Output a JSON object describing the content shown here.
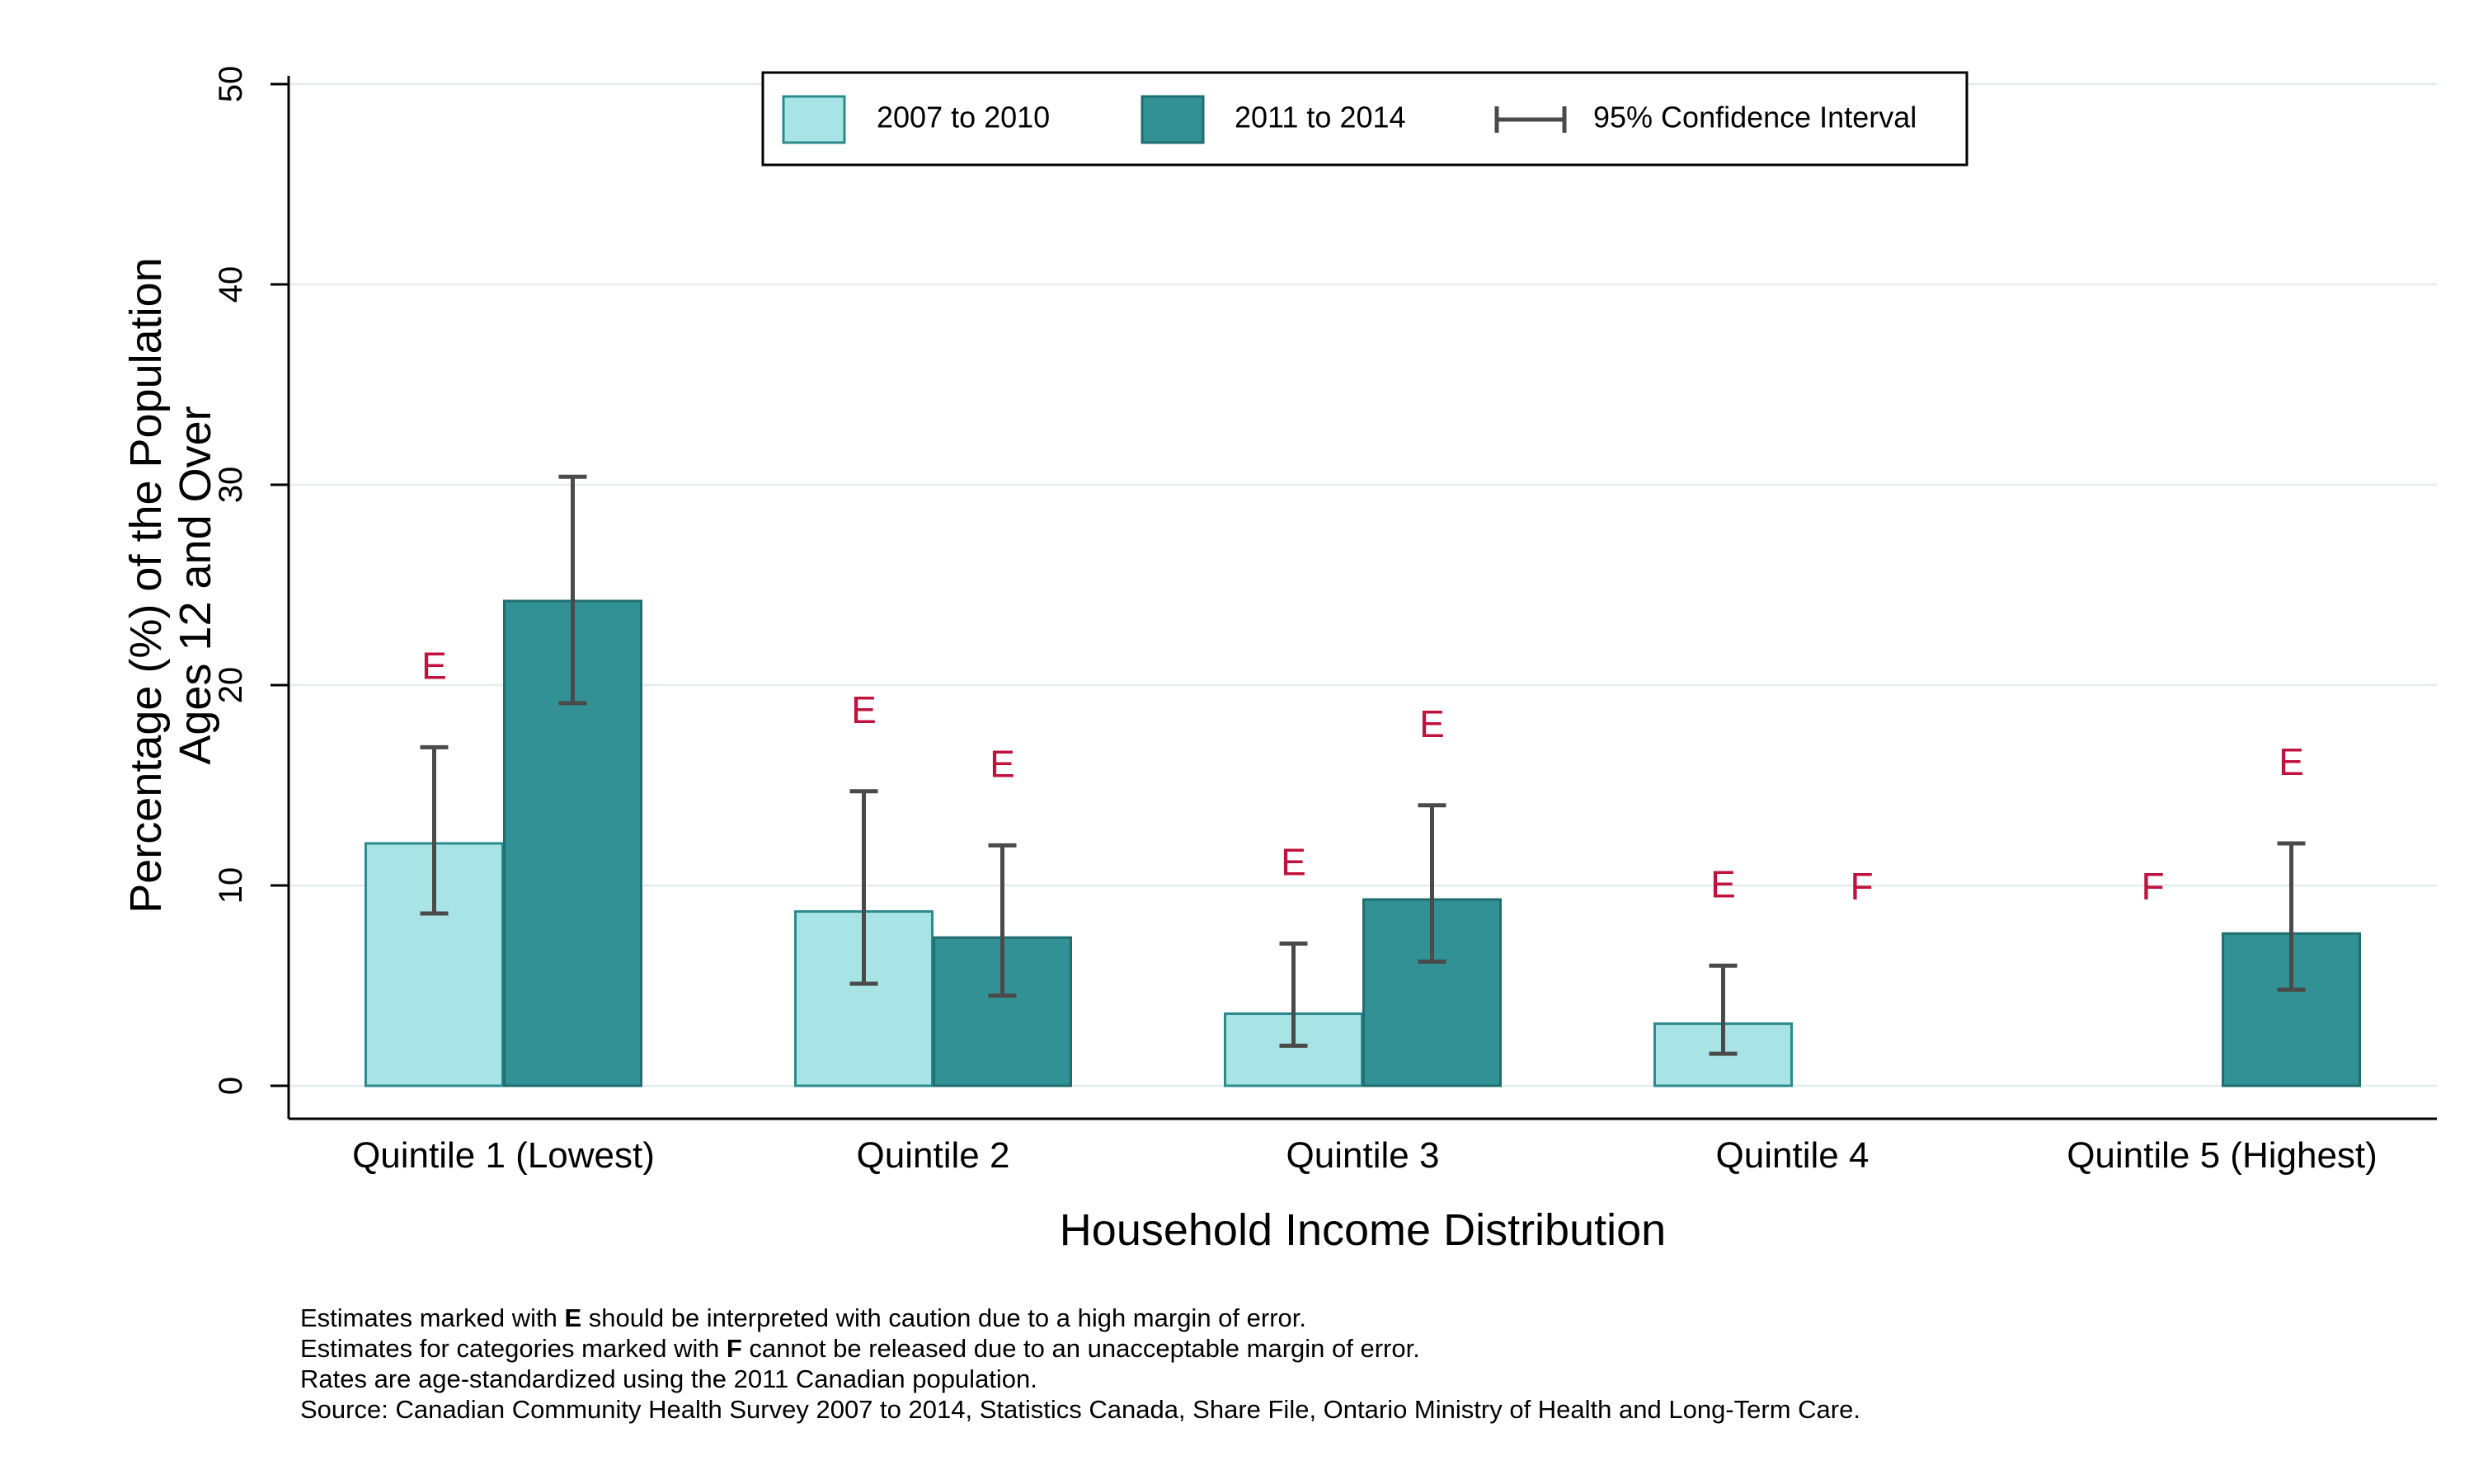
{
  "chart_data": {
    "type": "bar",
    "title": "",
    "xlabel": "Household Income Distribution",
    "ylabel_lines": [
      "Percentage (%) of the Population",
      "Ages 12 and Over"
    ],
    "ylim": [
      0,
      50
    ],
    "yticks": [
      0,
      10,
      20,
      30,
      40,
      50
    ],
    "grid": true,
    "legend_placement": "top-center",
    "categories": [
      "Quintile 1 (Lowest)",
      "Quintile 2",
      "Quintile 3",
      "Quintile 4",
      "Quintile 5 (Highest)"
    ],
    "series": [
      {
        "name": "2007 to 2010",
        "color": "#a8e4e6",
        "stroke": "#2b8a8c",
        "values": [
          12.1,
          8.7,
          3.6,
          3.1,
          null
        ],
        "ci_low": [
          8.6,
          5.1,
          2.0,
          1.6,
          null
        ],
        "ci_high": [
          16.9,
          14.7,
          7.1,
          6.0,
          null
        ],
        "flags": [
          "E",
          "E",
          "E",
          "E",
          "F"
        ]
      },
      {
        "name": "2011 to 2014",
        "color": "#329194",
        "stroke": "#1f6e70",
        "values": [
          24.2,
          7.4,
          9.3,
          null,
          7.6
        ],
        "ci_low": [
          19.1,
          4.5,
          6.2,
          null,
          4.8
        ],
        "ci_high": [
          30.4,
          12.0,
          14.0,
          null,
          12.1
        ],
        "flags": [
          "",
          "E",
          "E",
          "F",
          "E"
        ]
      }
    ],
    "ci_legend_label": "95% Confidence Interval",
    "flag_color": "#c0123c"
  },
  "footnotes": {
    "line1_pre": "Estimates marked with ",
    "line1_mark": "E",
    "line1_post": " should be interpreted with caution due to a high margin of error.",
    "line2_pre": "Estimates for categories marked with ",
    "line2_mark": "F",
    "line2_post": " cannot be released due to an unacceptable margin of error.",
    "line3": "Rates are age-standardized using the 2011 Canadian population.",
    "line4": "Source: Canadian Community Health Survey 2007 to 2014, Statistics Canada, Share File, Ontario Ministry of Health and Long-Term Care."
  }
}
